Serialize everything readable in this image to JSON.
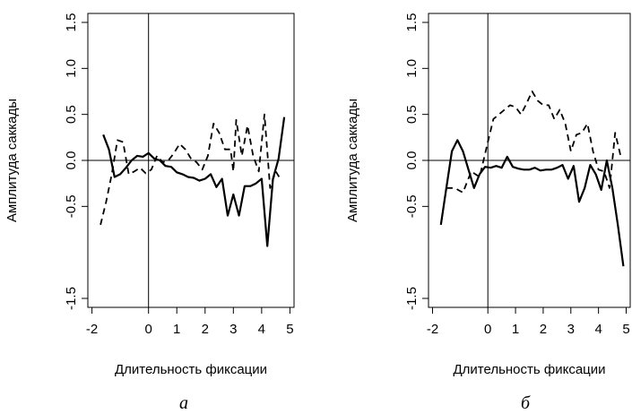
{
  "chart_data": [
    {
      "type": "line",
      "panel_label": "а",
      "xlabel": "Длительность фиксации",
      "ylabel": "Амплитуда саккады",
      "xlim": [
        -2,
        5
      ],
      "ylim": [
        -1.5,
        1.5
      ],
      "x_ticks": [
        -2,
        0,
        1,
        2,
        3,
        4,
        5
      ],
      "y_ticks": [
        -1.5,
        -0.5,
        0.0,
        0.5,
        1.0,
        1.5
      ],
      "y_tick_labels": [
        "-1.5",
        "-0.5",
        "0.0",
        "0.5",
        "1.0",
        "1.5"
      ],
      "reference_lines": {
        "x": 0,
        "y": 0
      },
      "series": [
        {
          "style": "solid",
          "x": [
            -1.6,
            -1.4,
            -1.2,
            -1.0,
            -0.8,
            -0.6,
            -0.4,
            -0.2,
            0.0,
            0.2,
            0.4,
            0.6,
            0.8,
            1.0,
            1.2,
            1.4,
            1.6,
            1.8,
            2.0,
            2.2,
            2.4,
            2.6,
            2.8,
            3.0,
            3.2,
            3.4,
            3.6,
            3.8,
            4.0,
            4.2,
            4.4,
            4.6,
            4.8
          ],
          "y": [
            0.28,
            0.12,
            -0.18,
            -0.15,
            -0.08,
            0.0,
            0.05,
            0.04,
            0.08,
            0.02,
            0.0,
            -0.06,
            -0.07,
            -0.13,
            -0.15,
            -0.18,
            -0.19,
            -0.22,
            -0.2,
            -0.15,
            -0.29,
            -0.2,
            -0.6,
            -0.37,
            -0.6,
            -0.28,
            -0.28,
            -0.25,
            -0.2,
            -0.93,
            -0.2,
            0.02,
            0.47
          ]
        },
        {
          "style": "dashed",
          "x": [
            -1.7,
            -1.5,
            -1.3,
            -1.1,
            -0.9,
            -0.7,
            -0.5,
            -0.3,
            -0.1,
            0.1,
            0.3,
            0.5,
            0.7,
            0.9,
            1.1,
            1.3,
            1.5,
            1.7,
            1.9,
            2.1,
            2.3,
            2.5,
            2.7,
            2.9,
            3.0,
            3.1,
            3.3,
            3.5,
            3.7,
            3.9,
            4.1,
            4.3,
            4.5,
            4.7
          ],
          "y": [
            -0.7,
            -0.45,
            -0.15,
            0.22,
            0.2,
            -0.15,
            -0.12,
            -0.08,
            -0.14,
            -0.1,
            0.05,
            -0.02,
            0.0,
            0.08,
            0.18,
            0.12,
            0.02,
            -0.02,
            -0.1,
            0.05,
            0.4,
            0.3,
            0.12,
            0.12,
            -0.12,
            0.44,
            0.05,
            0.38,
            0.05,
            -0.12,
            0.5,
            -0.3,
            -0.12,
            -0.22
          ]
        }
      ]
    },
    {
      "type": "line",
      "panel_label": "б",
      "xlabel": "Длительность фиксации",
      "ylabel": "Амплитуда саккады",
      "xlim": [
        -2,
        5
      ],
      "ylim": [
        -1.5,
        1.5
      ],
      "x_ticks": [
        -2,
        0,
        1,
        2,
        3,
        4,
        5
      ],
      "y_ticks": [
        -1.5,
        -0.5,
        0.0,
        0.5,
        1.0,
        1.5
      ],
      "y_tick_labels": [
        "-1.5",
        "-0.5",
        "0.0",
        "0.5",
        "1.0",
        "1.5"
      ],
      "reference_lines": {
        "x": 0,
        "y": 0
      },
      "series": [
        {
          "style": "solid",
          "x": [
            -1.7,
            -1.5,
            -1.3,
            -1.1,
            -0.9,
            -0.7,
            -0.5,
            -0.3,
            -0.1,
            0.1,
            0.3,
            0.5,
            0.7,
            0.9,
            1.1,
            1.3,
            1.5,
            1.7,
            1.9,
            2.1,
            2.3,
            2.5,
            2.7,
            2.9,
            3.1,
            3.3,
            3.5,
            3.7,
            3.9,
            4.1,
            4.3,
            4.5,
            4.7,
            4.9
          ],
          "y": [
            -0.7,
            -0.3,
            0.1,
            0.22,
            0.1,
            -0.1,
            -0.3,
            -0.15,
            -0.07,
            -0.08,
            -0.06,
            -0.08,
            0.04,
            -0.07,
            -0.09,
            -0.1,
            -0.1,
            -0.08,
            -0.11,
            -0.1,
            -0.1,
            -0.08,
            -0.05,
            -0.2,
            -0.06,
            -0.45,
            -0.3,
            -0.05,
            -0.15,
            -0.32,
            0.0,
            -0.3,
            -0.7,
            -1.15
          ]
        },
        {
          "style": "dashed",
          "x": [
            -1.5,
            -1.2,
            -0.9,
            -0.6,
            -0.3,
            0.0,
            0.2,
            0.4,
            0.6,
            0.8,
            1.0,
            1.2,
            1.4,
            1.6,
            1.8,
            2.0,
            2.2,
            2.4,
            2.6,
            2.8,
            3.0,
            3.2,
            3.4,
            3.6,
            3.8,
            4.0,
            4.2,
            4.4,
            4.6,
            4.8
          ],
          "y": [
            -0.3,
            -0.3,
            -0.35,
            -0.12,
            -0.18,
            0.2,
            0.45,
            0.5,
            0.55,
            0.6,
            0.58,
            0.5,
            0.62,
            0.75,
            0.65,
            0.6,
            0.6,
            0.45,
            0.55,
            0.4,
            0.1,
            0.28,
            0.3,
            0.4,
            0.1,
            -0.1,
            -0.12,
            -0.3,
            0.3,
            0.05
          ]
        }
      ]
    }
  ]
}
